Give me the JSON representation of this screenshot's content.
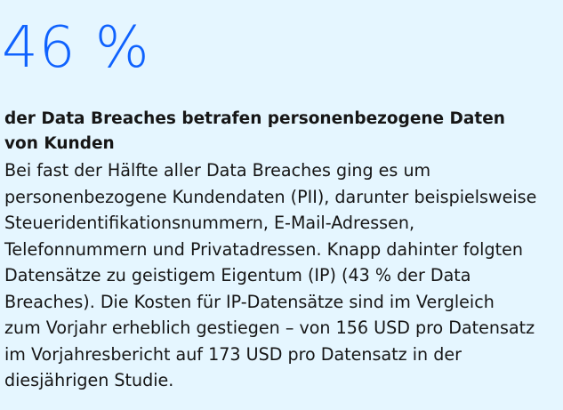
{
  "stat": {
    "value": "46 %"
  },
  "headline": {
    "line1": "der Data Breaches betrafen personenbezogene Daten",
    "line2": "von Kunden"
  },
  "body": {
    "lines": [
      "Bei fast der Hälfte aller Data Breaches ging es um",
      "personenbezogene Kundendaten (PII), darunter beispielsweise",
      "Steueridentifikationsnummern, E-Mail-Adressen,",
      "Telefonnummern und Privatadressen. Knapp dahinter folgten",
      "Datensätze zu geistigem Eigentum (IP) (43 % der Data",
      "Breaches). Die Kosten für IP-Datensätze sind im Vergleich",
      "zum Vorjahr erheblich gestiegen – von 156 USD pro Datensatz",
      "im Vorjahresbericht auf 173 USD pro Datensatz in der",
      "diesjährigen Studie."
    ]
  },
  "colors": {
    "background": "#e5f6ff",
    "accent": "#0f62fe",
    "text": "#161616"
  }
}
